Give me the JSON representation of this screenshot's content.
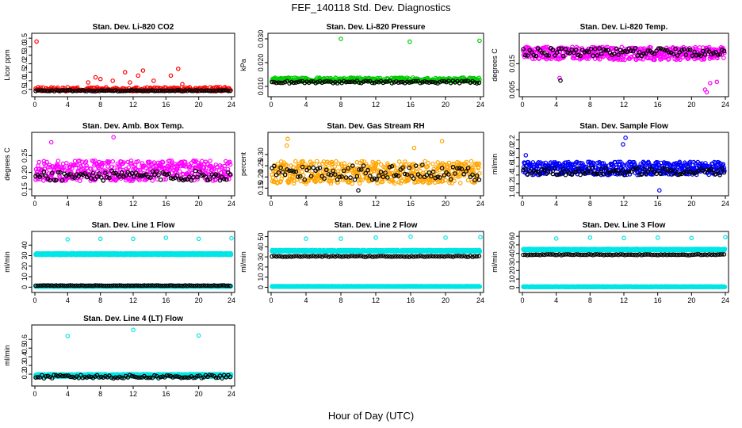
{
  "header": {
    "title": "FEF_140118  Std. Dev. Diagnostics"
  },
  "footer": {
    "xlabel": "Hour of Day (UTC)"
  },
  "colors": {
    "black_series": "#000000",
    "background": "#ffffff"
  },
  "chart_data": [
    {
      "type": "scatter",
      "title": "Stan. Dev. Li-820 CO2",
      "ylabel": "Licor ppm",
      "xlim": [
        0,
        24
      ],
      "ylim": [
        0.25,
        3.6
      ],
      "xticks": [
        "0",
        "4",
        "8",
        "12",
        "16",
        "20",
        "24"
      ],
      "yticks": [
        0.5,
        1.0,
        1.5,
        2.0,
        2.5,
        3.0,
        3.5
      ],
      "yticklabels": [
        "0.5",
        "1.0",
        "1.5",
        "2.0",
        "2.5",
        "3.0",
        "3.5"
      ],
      "series": [
        {
          "color": "#ff0000",
          "base": 0.5,
          "spread": 0.12,
          "density": 0.1,
          "spikes": [
            [
              0.2,
              3.3
            ],
            [
              6.5,
              0.9
            ],
            [
              7.4,
              1.2
            ],
            [
              8.0,
              1.1
            ],
            [
              9.5,
              1.0
            ],
            [
              11.0,
              1.5
            ],
            [
              11.6,
              0.9
            ],
            [
              12.6,
              1.3
            ],
            [
              13.2,
              1.6
            ],
            [
              14.5,
              1.0
            ],
            [
              16.6,
              1.3
            ],
            [
              17.5,
              1.7
            ],
            [
              18.0,
              0.8
            ]
          ]
        },
        {
          "color": "#000000",
          "base": 0.42,
          "spread": 0.03,
          "density": 0.25,
          "spikes": []
        }
      ]
    },
    {
      "type": "scatter",
      "title": "Stan. Dev. Li-820 Pressure",
      "ylabel": "kPa",
      "xlim": [
        0,
        24
      ],
      "ylim": [
        0.007,
        0.031
      ],
      "xticks": [
        "0",
        "4",
        "8",
        "12",
        "16",
        "20",
        "24"
      ],
      "yticks": [
        0.01,
        0.02,
        0.03
      ],
      "yticklabels": [
        "0.010",
        "0.020",
        "0.030"
      ],
      "series": [
        {
          "color": "#00cc00",
          "base": 0.0128,
          "spread": 0.0009,
          "density": 0.07,
          "spikes": [
            [
              8.0,
              0.03
            ],
            [
              15.9,
              0.0288
            ],
            [
              23.9,
              0.0292
            ]
          ]
        },
        {
          "color": "#000000",
          "base": 0.0118,
          "spread": 0.0005,
          "density": 0.25,
          "spikes": []
        }
      ]
    },
    {
      "type": "scatter",
      "title": "Stan. Dev. Li-820 Temp.",
      "ylabel": "degrees C",
      "xlim": [
        0,
        24
      ],
      "ylim": [
        0.0035,
        0.0255
      ],
      "xticks": [
        "0",
        "4",
        "8",
        "12",
        "16",
        "20",
        "24"
      ],
      "yticks": [
        0.005,
        0.015
      ],
      "yticklabels": [
        "0.005",
        "0.015"
      ],
      "series": [
        {
          "color": "#ff00ff",
          "base": 0.019,
          "spread": 0.0025,
          "density": 0.05,
          "spikes": [
            [
              4.4,
              0.0095
            ],
            [
              21.6,
              0.005
            ],
            [
              21.8,
              0.004
            ],
            [
              22.2,
              0.0075
            ],
            [
              23.0,
              0.008
            ]
          ]
        },
        {
          "color": "#000000",
          "base": 0.0195,
          "spread": 0.0015,
          "density": 0.25,
          "spikes": [
            [
              4.5,
              0.0085
            ]
          ]
        }
      ]
    },
    {
      "type": "scatter",
      "title": "Stan. Dev. Amb. Box Temp.",
      "ylabel": "degrees C",
      "xlim": [
        0,
        24
      ],
      "ylim": [
        0.14,
        0.31
      ],
      "xticks": [
        "0",
        "4",
        "8",
        "12",
        "16",
        "20",
        "24"
      ],
      "yticks": [
        0.15,
        0.2,
        0.25
      ],
      "yticklabels": [
        "0.15",
        "0.20",
        "0.25"
      ],
      "series": [
        {
          "color": "#ff00ff",
          "base": 0.205,
          "spread": 0.03,
          "density": 0.05,
          "spikes": [
            [
              9.6,
              0.305
            ],
            [
              2.0,
              0.29
            ]
          ]
        },
        {
          "color": "#000000",
          "base": 0.19,
          "spread": 0.015,
          "density": 0.25,
          "spikes": []
        }
      ]
    },
    {
      "type": "scatter",
      "title": "Stan. Dev. Gas Stream RH",
      "ylabel": "percent",
      "xlim": [
        0,
        24
      ],
      "ylim": [
        0.13,
        0.385
      ],
      "xticks": [
        "0",
        "4",
        "8",
        "12",
        "16",
        "20",
        "24"
      ],
      "yticks": [
        0.15,
        0.2,
        0.25,
        0.3
      ],
      "yticklabels": [
        "0.15",
        "0.20",
        "0.25",
        "0.30"
      ],
      "series": [
        {
          "color": "#ffa500",
          "base": 0.22,
          "spread": 0.05,
          "density": 0.05,
          "spikes": [
            [
              1.9,
              0.37
            ],
            [
              1.8,
              0.34
            ],
            [
              19.6,
              0.36
            ],
            [
              16.4,
              0.33
            ]
          ]
        },
        {
          "color": "#000000",
          "base": 0.22,
          "spread": 0.035,
          "density": 0.25,
          "spikes": [
            [
              10.0,
              0.14
            ]
          ]
        }
      ]
    },
    {
      "type": "scatter",
      "title": "Stan. Dev. Sample Flow",
      "ylabel": "ml/min",
      "xlim": [
        0,
        24
      ],
      "ylim": [
        1.0,
        2.3
      ],
      "xticks": [
        "0",
        "4",
        "8",
        "12",
        "16",
        "20",
        "24"
      ],
      "yticks": [
        1.0,
        1.2,
        1.4,
        1.6,
        1.8,
        2.0,
        2.2
      ],
      "yticklabels": [
        "1.0",
        "1.2",
        "1.4",
        "1.6",
        "1.8",
        "2.0",
        "2.2"
      ],
      "series": [
        {
          "color": "#0000ff",
          "base": 1.55,
          "spread": 0.15,
          "density": 0.05,
          "spikes": [
            [
              12.2,
              2.25
            ],
            [
              11.9,
              2.1
            ],
            [
              0.4,
              1.85
            ],
            [
              16.2,
              1.05
            ]
          ]
        },
        {
          "color": "#000000",
          "base": 1.48,
          "spread": 0.08,
          "density": 0.25,
          "spikes": []
        }
      ]
    },
    {
      "type": "scatter",
      "title": "Stan. Dev. Line 1 Flow",
      "ylabel": "ml/min",
      "xlim": [
        0,
        24
      ],
      "ylim": [
        -2,
        50
      ],
      "xticks": [
        "0",
        "4",
        "8",
        "12",
        "16",
        "20",
        "24"
      ],
      "yticks": [
        0,
        10,
        20,
        30,
        40
      ],
      "yticklabels": [
        "0",
        "10",
        "20",
        "30",
        "40"
      ],
      "series": [
        {
          "color": "#00e5e5",
          "base": 31.5,
          "spread": 0.8,
          "density": 0.02,
          "spikes": [
            [
              4.0,
              45.5
            ],
            [
              8.0,
              46.0
            ],
            [
              12.0,
              46.0
            ],
            [
              16.0,
              47.0
            ],
            [
              20.0,
              46.0
            ],
            [
              24.0,
              46.5
            ]
          ]
        },
        {
          "color": "#00e5e5",
          "base": 0.7,
          "spread": 0.2,
          "density": 0.02,
          "spikes": []
        },
        {
          "color": "#000000",
          "base": 1.5,
          "spread": 0.2,
          "density": 0.25,
          "spikes": []
        }
      ]
    },
    {
      "type": "scatter",
      "title": "Stan. Dev. Line 2 Flow",
      "ylabel": "ml/min",
      "xlim": [
        0,
        24
      ],
      "ylim": [
        -2,
        52
      ],
      "xticks": [
        "0",
        "4",
        "8",
        "12",
        "16",
        "20",
        "24"
      ],
      "yticks": [
        0,
        10,
        20,
        30,
        40,
        50
      ],
      "yticklabels": [
        "0",
        "10",
        "20",
        "30",
        "40",
        "50"
      ],
      "series": [
        {
          "color": "#00e5e5",
          "base": 36.0,
          "spread": 0.8,
          "density": 0.02,
          "spikes": [
            [
              4.0,
              48.0
            ],
            [
              8.0,
              48.0
            ],
            [
              12.0,
              49.0
            ],
            [
              16.0,
              50.0
            ],
            [
              20.0,
              49.0
            ],
            [
              24.0,
              49.5
            ]
          ]
        },
        {
          "color": "#00e5e5",
          "base": 0.8,
          "spread": 0.3,
          "density": 0.02,
          "spikes": []
        },
        {
          "color": "#000000",
          "base": 30.5,
          "spread": 0.5,
          "density": 0.25,
          "spikes": []
        }
      ]
    },
    {
      "type": "scatter",
      "title": "Stan. Dev. Line 3 Flow",
      "ylabel": "ml/min",
      "xlim": [
        0,
        24
      ],
      "ylim": [
        -2,
        62
      ],
      "xticks": [
        "0",
        "4",
        "8",
        "12",
        "16",
        "20",
        "24"
      ],
      "yticks": [
        0,
        10,
        20,
        30,
        40,
        50,
        60
      ],
      "yticklabels": [
        "0",
        "10",
        "20",
        "30",
        "40",
        "50",
        "60"
      ],
      "series": [
        {
          "color": "#00e5e5",
          "base": 44.5,
          "spread": 0.8,
          "density": 0.02,
          "spikes": [
            [
              4.0,
              57.5
            ],
            [
              8.0,
              58.5
            ],
            [
              12.0,
              58.0
            ],
            [
              16.0,
              58.5
            ],
            [
              20.0,
              58.0
            ],
            [
              24.0,
              59.0
            ]
          ]
        },
        {
          "color": "#00e5e5",
          "base": 1.0,
          "spread": 0.3,
          "density": 0.02,
          "spikes": []
        },
        {
          "color": "#000000",
          "base": 38.5,
          "spread": 0.5,
          "density": 0.25,
          "spikes": []
        }
      ]
    },
    {
      "type": "scatter",
      "title": "Stan. Dev. Line 4 (LT) Flow",
      "ylabel": "ml/min",
      "xlim": [
        0,
        24
      ],
      "ylim": [
        0.1,
        0.73
      ],
      "xticks": [
        "0",
        "4",
        "8",
        "12",
        "16",
        "20",
        "24"
      ],
      "yticks": [
        0.2,
        0.3,
        0.4,
        0.5,
        0.6
      ],
      "yticklabels": [
        "0.2",
        "0.3",
        "0.4",
        "0.5",
        "0.6"
      ],
      "series": [
        {
          "color": "#00e5e5",
          "base": 0.185,
          "spread": 0.015,
          "density": 0.02,
          "spikes": [
            [
              4.0,
              0.64
            ],
            [
              12.0,
              0.71
            ],
            [
              20.0,
              0.645
            ]
          ]
        },
        {
          "color": "#000000",
          "base": 0.17,
          "spread": 0.02,
          "density": 0.25,
          "spikes": []
        }
      ]
    }
  ]
}
